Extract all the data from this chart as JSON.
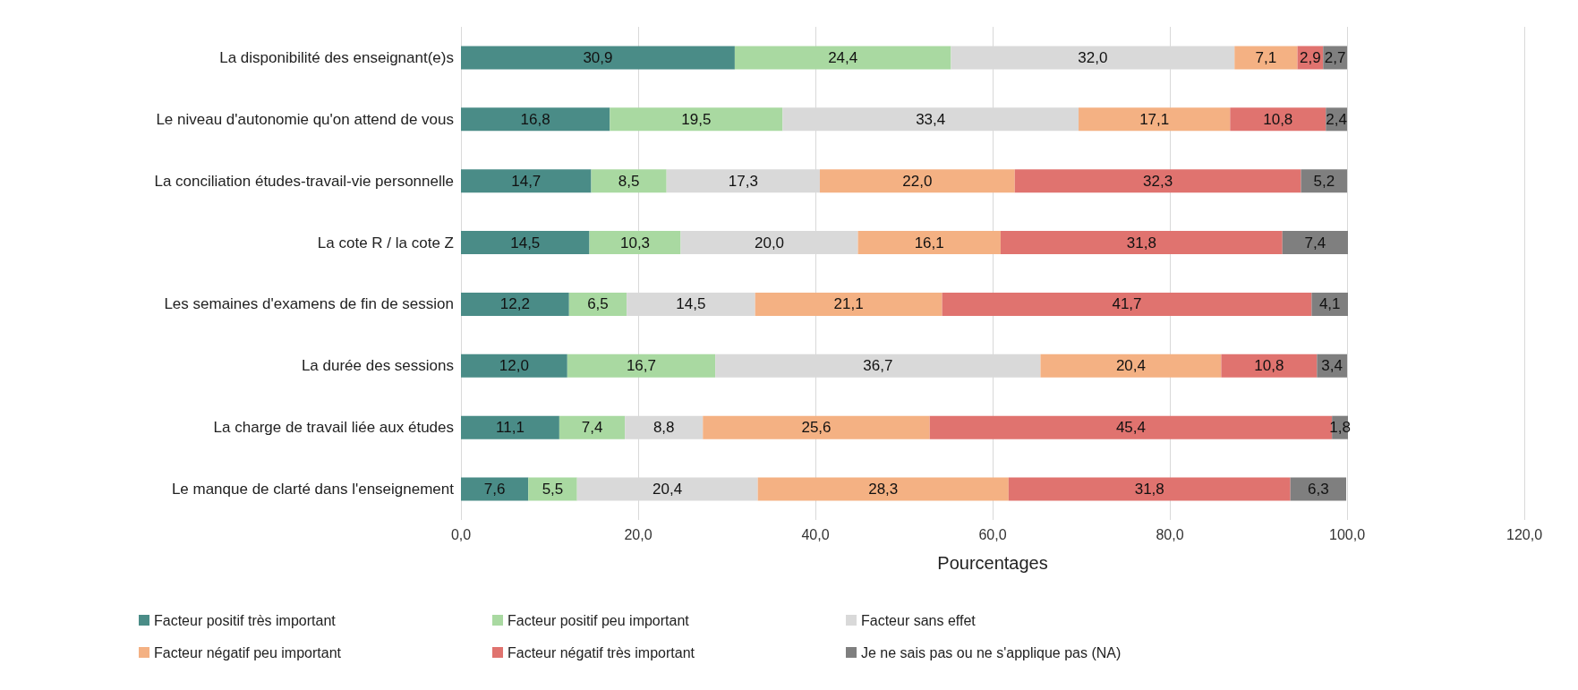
{
  "chart_data": {
    "type": "bar",
    "orientation": "horizontal",
    "stacked": true,
    "xlabel": "Pourcentages",
    "categories": [
      "La disponibilité des enseignant(e)s",
      "Le niveau d'autonomie qu'on attend de vous",
      "La conciliation études-travail-vie personnelle",
      "La cote R / la cote Z",
      "Les semaines d'examens de fin de session",
      "La durée des sessions",
      "La charge de travail liée aux études",
      "Le manque de clarté dans l'enseignement"
    ],
    "series": [
      {
        "name": "Facteur positif très important",
        "color": "#4a8c87",
        "values": [
          30.9,
          16.8,
          14.7,
          14.5,
          12.2,
          12.0,
          11.1,
          7.6
        ],
        "value_labels": [
          "30,9",
          "16,8",
          "14,7",
          "14,5",
          "12,2",
          "12,0",
          "11,1",
          "7,6"
        ]
      },
      {
        "name": "Facteur positif peu important",
        "color": "#a9d9a1",
        "values": [
          24.4,
          19.5,
          8.5,
          10.3,
          6.5,
          16.7,
          7.4,
          5.5
        ],
        "value_labels": [
          "24,4",
          "19,5",
          "8,5",
          "10,3",
          "6,5",
          "16,7",
          "7,4",
          "5,5"
        ]
      },
      {
        "name": "Facteur sans effet",
        "color": "#d9d9d9",
        "values": [
          32.0,
          33.4,
          17.3,
          20.0,
          14.5,
          36.7,
          8.8,
          20.4
        ],
        "value_labels": [
          "32,0",
          "33,4",
          "17,3",
          "20,0",
          "14,5",
          "36,7",
          "8,8",
          "20,4"
        ]
      },
      {
        "name": "Facteur négatif peu important",
        "color": "#f4b183",
        "values": [
          7.1,
          17.1,
          22.0,
          16.1,
          21.1,
          20.4,
          25.6,
          28.3
        ],
        "value_labels": [
          "7,1",
          "17,1",
          "22,0",
          "16,1",
          "21,1",
          "20,4",
          "25,6",
          "28,3"
        ]
      },
      {
        "name": "Facteur négatif très important",
        "color": "#e0736f",
        "values": [
          2.9,
          10.8,
          32.3,
          31.8,
          41.7,
          10.8,
          45.4,
          31.8
        ],
        "value_labels": [
          "2,9",
          "10,8",
          "32,3",
          "31,8",
          "41,7",
          "10,8",
          "45,4",
          "31,8"
        ]
      },
      {
        "name": "Je ne sais pas ou ne s'applique pas (NA)",
        "color": "#7f7f7f",
        "values": [
          2.7,
          2.4,
          5.2,
          7.4,
          4.1,
          3.4,
          1.8,
          6.3
        ],
        "value_labels": [
          "2,7",
          "2,4",
          "5,2",
          "7,4",
          "4,1",
          "3,4",
          "1,8",
          "6,3"
        ]
      }
    ],
    "xlim": [
      0,
      120
    ],
    "xticks": [
      {
        "value": 0,
        "label": "0,0"
      },
      {
        "value": 20,
        "label": "20,0"
      },
      {
        "value": 40,
        "label": "40,0"
      },
      {
        "value": 60,
        "label": "60,0"
      },
      {
        "value": 80,
        "label": "80,0"
      },
      {
        "value": 100,
        "label": "100,0"
      },
      {
        "value": 120,
        "label": "120,0"
      }
    ],
    "grid": "x",
    "legend": "bottom"
  }
}
